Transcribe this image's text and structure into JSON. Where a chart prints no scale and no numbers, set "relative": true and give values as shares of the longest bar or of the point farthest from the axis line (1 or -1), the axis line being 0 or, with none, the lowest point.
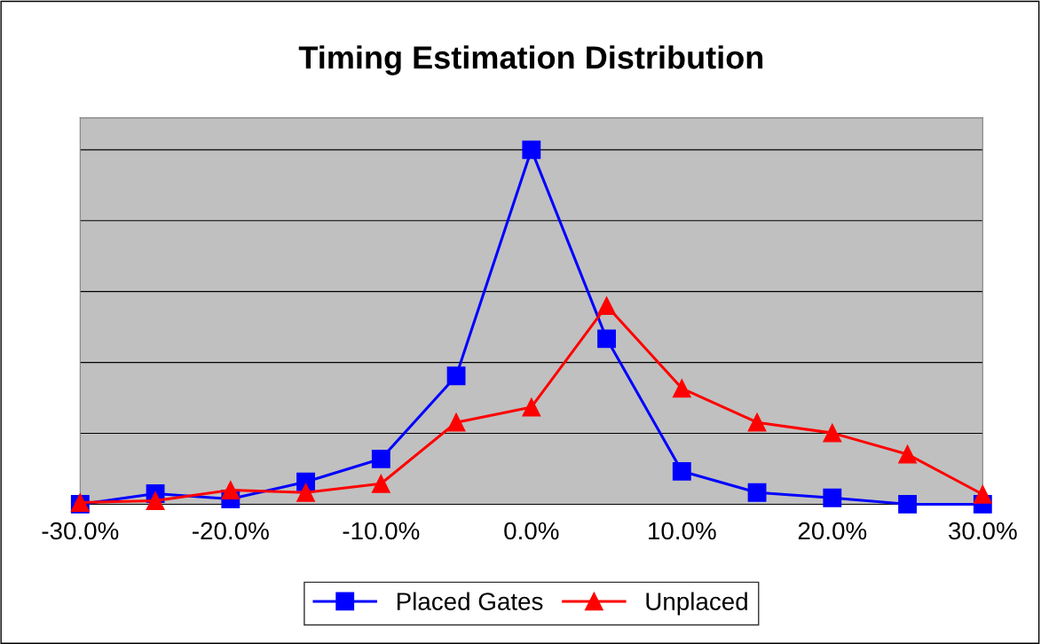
{
  "chart_data": {
    "type": "line",
    "title": "Timing Estimation Distribution",
    "relative": true,
    "x": [
      -30,
      -25,
      -20,
      -15,
      -10,
      -5,
      0,
      5,
      10,
      15,
      20,
      25,
      30
    ],
    "xlim": [
      -30,
      30
    ],
    "xticks": [
      {
        "value": -30,
        "label": "-30.0%"
      },
      {
        "value": -20,
        "label": "-20.0%"
      },
      {
        "value": -10,
        "label": "-10.0%"
      },
      {
        "value": 0,
        "label": "0.0%"
      },
      {
        "value": 10,
        "label": "10.0%"
      },
      {
        "value": 20,
        "label": "20.0%"
      },
      {
        "value": 30,
        "label": "30.0%"
      }
    ],
    "series": [
      {
        "name": "Placed Gates",
        "color": "#0000ff",
        "marker": "square",
        "values": [
          0,
          0.03,
          0.015,
          0.063,
          0.128,
          0.362,
          1,
          0.467,
          0.093,
          0.033,
          0.018,
          0,
          0
        ]
      },
      {
        "name": "Unplaced",
        "color": "#ff0000",
        "marker": "triangle",
        "values": [
          0.005,
          0.01,
          0.04,
          0.033,
          0.058,
          0.231,
          0.274,
          0.56,
          0.327,
          0.231,
          0.201,
          0.141,
          0.028
        ]
      }
    ],
    "grid": "y",
    "legend": "bottom",
    "line_style": "solid"
  }
}
